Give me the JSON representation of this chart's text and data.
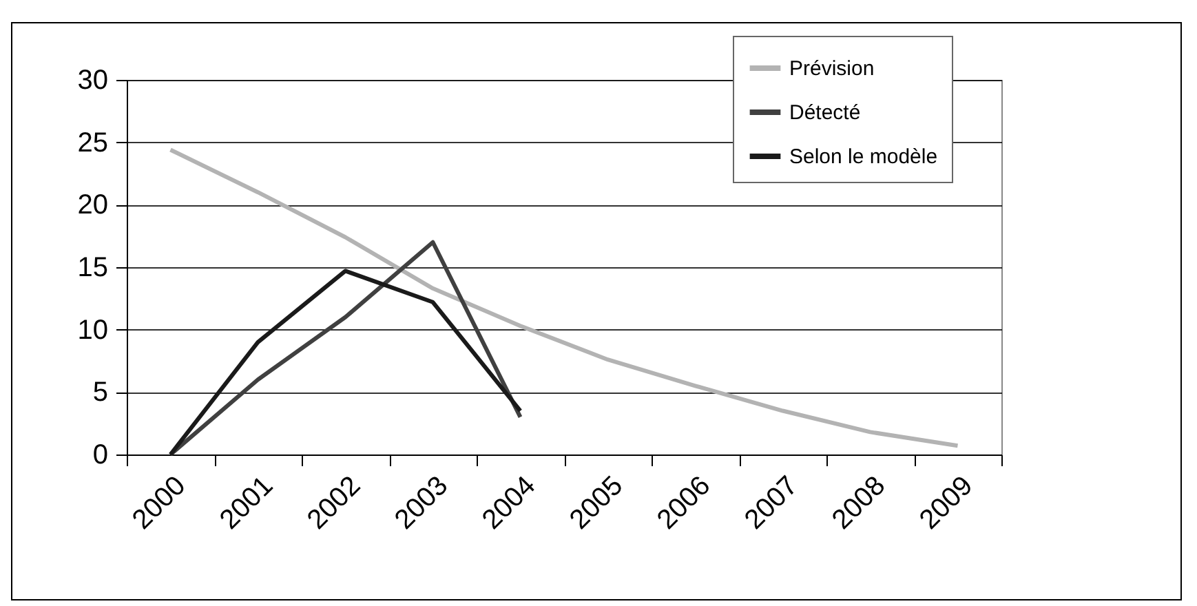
{
  "chart_data": {
    "type": "line",
    "categories": [
      "2000",
      "2001",
      "2002",
      "2003",
      "2004",
      "2005",
      "2006",
      "2007",
      "2008",
      "2009"
    ],
    "series": [
      {
        "name": "Prévision",
        "color": "#b3b3b3",
        "values": [
          24.4,
          21,
          17.4,
          13.3,
          10.3,
          7.6,
          5.5,
          3.5,
          1.8,
          0.7
        ]
      },
      {
        "name": "Détecté",
        "color": "#404040",
        "values": [
          0,
          6,
          11,
          17,
          3,
          null,
          null,
          null,
          null,
          null
        ]
      },
      {
        "name": "Selon le modèle",
        "color": "#1a1a1a",
        "values": [
          0,
          9,
          14.7,
          12.2,
          3.5,
          null,
          null,
          null,
          null,
          null
        ]
      }
    ],
    "ylim": [
      0,
      30
    ],
    "yticks": [
      0,
      5,
      10,
      15,
      20,
      25,
      30
    ],
    "grid": "y",
    "legend": "top right",
    "marker": "none",
    "line_style": "solid"
  }
}
